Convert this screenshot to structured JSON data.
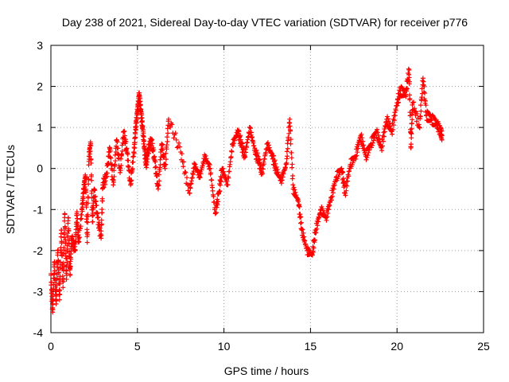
{
  "chart_data": {
    "type": "scatter",
    "title": "Day 238 of 2021, Sidereal Day-to-day VTEC variation (SDTVAR) for receiver p776",
    "xlabel": "GPS time / hours",
    "ylabel": "SDTVAR / TECUs",
    "xlim": [
      0,
      25
    ],
    "ylim": [
      -4,
      3
    ],
    "xticks": [
      0,
      5,
      10,
      15,
      20,
      25
    ],
    "yticks": [
      -4,
      -3,
      -2,
      -1,
      0,
      1,
      2,
      3
    ],
    "grid": true,
    "marker": "+",
    "color": "#ff0000",
    "series": [
      {
        "name": "SDTVAR",
        "points": [
          [
            0.0,
            -2.6
          ],
          [
            0.1,
            -3.5
          ],
          [
            0.2,
            -2.3
          ],
          [
            0.3,
            -3.3
          ],
          [
            0.4,
            -2.0
          ],
          [
            0.5,
            -3.2
          ],
          [
            0.6,
            -1.5
          ],
          [
            0.7,
            -2.9
          ],
          [
            0.8,
            -1.1
          ],
          [
            0.9,
            -2.7
          ],
          [
            1.0,
            -1.2
          ],
          [
            1.1,
            -2.6
          ],
          [
            1.2,
            -1.7
          ],
          [
            1.4,
            -2.0
          ],
          [
            1.5,
            -1.1
          ],
          [
            1.6,
            -1.8
          ],
          [
            1.8,
            -1.0
          ],
          [
            1.9,
            -0.5
          ],
          [
            2.0,
            -0.2
          ],
          [
            2.1,
            -1.8
          ],
          [
            2.2,
            0.3
          ],
          [
            2.3,
            0.6
          ],
          [
            2.4,
            -1.3
          ],
          [
            2.5,
            -0.5
          ],
          [
            2.7,
            -1.2
          ],
          [
            2.9,
            -1.7
          ],
          [
            3.0,
            -0.4
          ],
          [
            3.2,
            -0.2
          ],
          [
            3.4,
            0.5
          ],
          [
            3.6,
            -0.4
          ],
          [
            3.8,
            0.7
          ],
          [
            4.0,
            -0.1
          ],
          [
            4.2,
            0.9
          ],
          [
            4.4,
            0.4
          ],
          [
            4.6,
            -0.4
          ],
          [
            4.8,
            0.4
          ],
          [
            4.9,
            1.0
          ],
          [
            5.0,
            1.4
          ],
          [
            5.1,
            1.8
          ],
          [
            5.2,
            1.4
          ],
          [
            5.3,
            1.0
          ],
          [
            5.4,
            0.5
          ],
          [
            5.5,
            0.1
          ],
          [
            5.6,
            0.4
          ],
          [
            5.8,
            0.7
          ],
          [
            6.0,
            0.2
          ],
          [
            6.2,
            -0.5
          ],
          [
            6.4,
            0.6
          ],
          [
            6.6,
            0.0
          ],
          [
            6.8,
            1.2
          ],
          [
            7.5,
            0.4
          ],
          [
            8.0,
            -0.6
          ],
          [
            8.3,
            0.1
          ],
          [
            8.6,
            -0.2
          ],
          [
            8.9,
            0.3
          ],
          [
            9.2,
            0.0
          ],
          [
            9.5,
            -1.1
          ],
          [
            9.7,
            -0.6
          ],
          [
            9.9,
            0.0
          ],
          [
            10.2,
            -0.4
          ],
          [
            10.5,
            0.6
          ],
          [
            10.8,
            0.9
          ],
          [
            11.0,
            0.6
          ],
          [
            11.2,
            0.3
          ],
          [
            11.5,
            1.0
          ],
          [
            11.8,
            0.4
          ],
          [
            12.0,
            0.2
          ],
          [
            12.2,
            -0.1
          ],
          [
            12.5,
            0.6
          ],
          [
            12.8,
            0.3
          ],
          [
            13.0,
            0.0
          ],
          [
            13.3,
            -0.3
          ],
          [
            13.6,
            0.1
          ],
          [
            13.8,
            1.2
          ],
          [
            14.0,
            -0.5
          ],
          [
            14.3,
            -0.8
          ],
          [
            14.5,
            -1.5
          ],
          [
            14.8,
            -2.0
          ],
          [
            15.1,
            -2.1
          ],
          [
            15.3,
            -1.5
          ],
          [
            15.6,
            -1.0
          ],
          [
            15.9,
            -1.2
          ],
          [
            16.2,
            -0.7
          ],
          [
            16.5,
            -0.2
          ],
          [
            16.8,
            0.0
          ],
          [
            17.0,
            -0.6
          ],
          [
            17.3,
            0.1
          ],
          [
            17.6,
            0.3
          ],
          [
            17.9,
            0.8
          ],
          [
            18.2,
            0.3
          ],
          [
            18.5,
            0.6
          ],
          [
            18.8,
            0.9
          ],
          [
            19.1,
            0.5
          ],
          [
            19.4,
            1.2
          ],
          [
            19.7,
            0.9
          ],
          [
            20.0,
            1.6
          ],
          [
            20.2,
            1.9
          ],
          [
            20.5,
            1.8
          ],
          [
            20.7,
            2.4
          ],
          [
            20.9,
            1.6
          ],
          [
            20.8,
            0.5
          ],
          [
            21.3,
            1.0
          ],
          [
            21.5,
            2.2
          ],
          [
            21.7,
            1.3
          ],
          [
            22.0,
            1.2
          ],
          [
            22.3,
            1.1
          ],
          [
            22.5,
            0.9
          ],
          [
            22.6,
            0.8
          ]
        ]
      }
    ]
  }
}
